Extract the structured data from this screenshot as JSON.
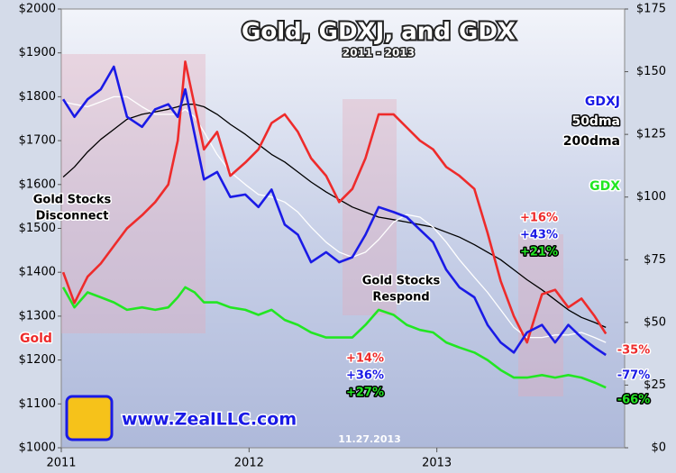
{
  "chart_data": {
    "type": "line",
    "title": "Gold, GDXJ, and GDX",
    "subtitle": "2011 - 2013",
    "x": [
      2011.01,
      2011.07,
      2011.14,
      2011.21,
      2011.28,
      2011.35,
      2011.43,
      2011.5,
      2011.57,
      2011.62,
      2011.66,
      2011.71,
      2011.76,
      2011.83,
      2011.9,
      2011.98,
      2012.05,
      2012.12,
      2012.19,
      2012.26,
      2012.33,
      2012.41,
      2012.48,
      2012.55,
      2012.62,
      2012.69,
      2012.77,
      2012.84,
      2012.91,
      2012.98,
      2013.05,
      2013.12,
      2013.2,
      2013.27,
      2013.34,
      2013.41,
      2013.48,
      2013.56,
      2013.63,
      2013.7,
      2013.77,
      2013.84,
      2013.9
    ],
    "xlim": [
      2011,
      2014
    ],
    "xticks": [
      2011,
      2012,
      2013
    ],
    "ylim": [
      1000,
      2000
    ],
    "yticks": [
      {
        "value": 1000,
        "label": "$1000"
      },
      {
        "value": 1100,
        "label": "$1100"
      },
      {
        "value": 1200,
        "label": "$1200"
      },
      {
        "value": 1300,
        "label": "$1300"
      },
      {
        "value": 1400,
        "label": "$1400"
      },
      {
        "value": 1500,
        "label": "$1500"
      },
      {
        "value": 1600,
        "label": "$1600"
      },
      {
        "value": 1700,
        "label": "$1700"
      },
      {
        "value": 1800,
        "label": "$1800"
      },
      {
        "value": 1900,
        "label": "$1900"
      },
      {
        "value": 2000,
        "label": "$2000"
      }
    ],
    "y2lim": [
      0,
      175
    ],
    "y2ticks": [
      {
        "value": 0,
        "label": "$0"
      },
      {
        "value": 25,
        "label": "$25"
      },
      {
        "value": 50,
        "label": "$50"
      },
      {
        "value": 75,
        "label": "$75"
      },
      {
        "value": 100,
        "label": "$100"
      },
      {
        "value": 125,
        "label": "$125"
      },
      {
        "value": 150,
        "label": "$150"
      },
      {
        "value": 175,
        "label": "$175"
      }
    ],
    "series": [
      {
        "name": "200dma",
        "color": "#000000",
        "axis": "y2",
        "values": [
          108,
          112,
          118,
          123,
          127,
          131,
          133,
          134,
          135,
          136,
          137,
          137,
          136,
          133,
          129,
          125,
          121,
          117,
          114,
          110,
          106,
          102,
          99,
          96,
          94,
          92,
          91,
          90,
          89,
          88,
          86,
          84,
          81,
          78,
          75,
          71,
          67,
          63,
          59,
          55,
          52,
          50,
          48
        ]
      },
      {
        "name": "50dma",
        "color": "#ffffff",
        "axis": "y2",
        "values": [
          138,
          137,
          136,
          138,
          140,
          140,
          136,
          133,
          133,
          133,
          135,
          132,
          126,
          117,
          110,
          105,
          101,
          100,
          98,
          94,
          88,
          82,
          78,
          76,
          78,
          83,
          90,
          93,
          92,
          88,
          82,
          75,
          68,
          62,
          55,
          48,
          44,
          44,
          45,
          45,
          46,
          44,
          42
        ]
      },
      {
        "name": "GDX",
        "color": "#22e622",
        "axis": "y2",
        "values": [
          64,
          56,
          62,
          60,
          58,
          55,
          56,
          55,
          56,
          60,
          64,
          62,
          58,
          58,
          56,
          55,
          53,
          55,
          51,
          49,
          46,
          44,
          44,
          44,
          49,
          55,
          53,
          49,
          47,
          46,
          42,
          40,
          38,
          35,
          31,
          28,
          28,
          29,
          28,
          29,
          28,
          26,
          24
        ]
      },
      {
        "name": "Gold",
        "color": "#ee2b2b",
        "axis": "y",
        "values": [
          1400,
          1330,
          1390,
          1420,
          1460,
          1500,
          1530,
          1560,
          1600,
          1700,
          1880,
          1780,
          1680,
          1720,
          1620,
          1650,
          1680,
          1740,
          1760,
          1720,
          1660,
          1620,
          1560,
          1590,
          1660,
          1760,
          1760,
          1730,
          1700,
          1680,
          1640,
          1620,
          1590,
          1490,
          1380,
          1300,
          1240,
          1350,
          1360,
          1320,
          1340,
          1300,
          1260
        ]
      },
      {
        "name": "GDXJ",
        "color": "#1a1ae6",
        "axis": "y2",
        "values": [
          139,
          132,
          139,
          143,
          152,
          132,
          128,
          135,
          137,
          132,
          143,
          125,
          107,
          110,
          100,
          101,
          96,
          103,
          89,
          85,
          74,
          78,
          74,
          76,
          85,
          96,
          94,
          92,
          87,
          82,
          71,
          64,
          60,
          49,
          42,
          38,
          46,
          49,
          42,
          49,
          44,
          40,
          37
        ]
      }
    ],
    "annotations": [
      "Gold Stocks",
      "Disconnect",
      "Gold Stocks",
      "Respond",
      "+16%",
      "+43%",
      "+21%",
      "+14%",
      "+36%",
      "+27%",
      "-35%",
      "-77%",
      "-66%",
      "www.ZealLLC.com",
      "11.27.2013"
    ]
  }
}
